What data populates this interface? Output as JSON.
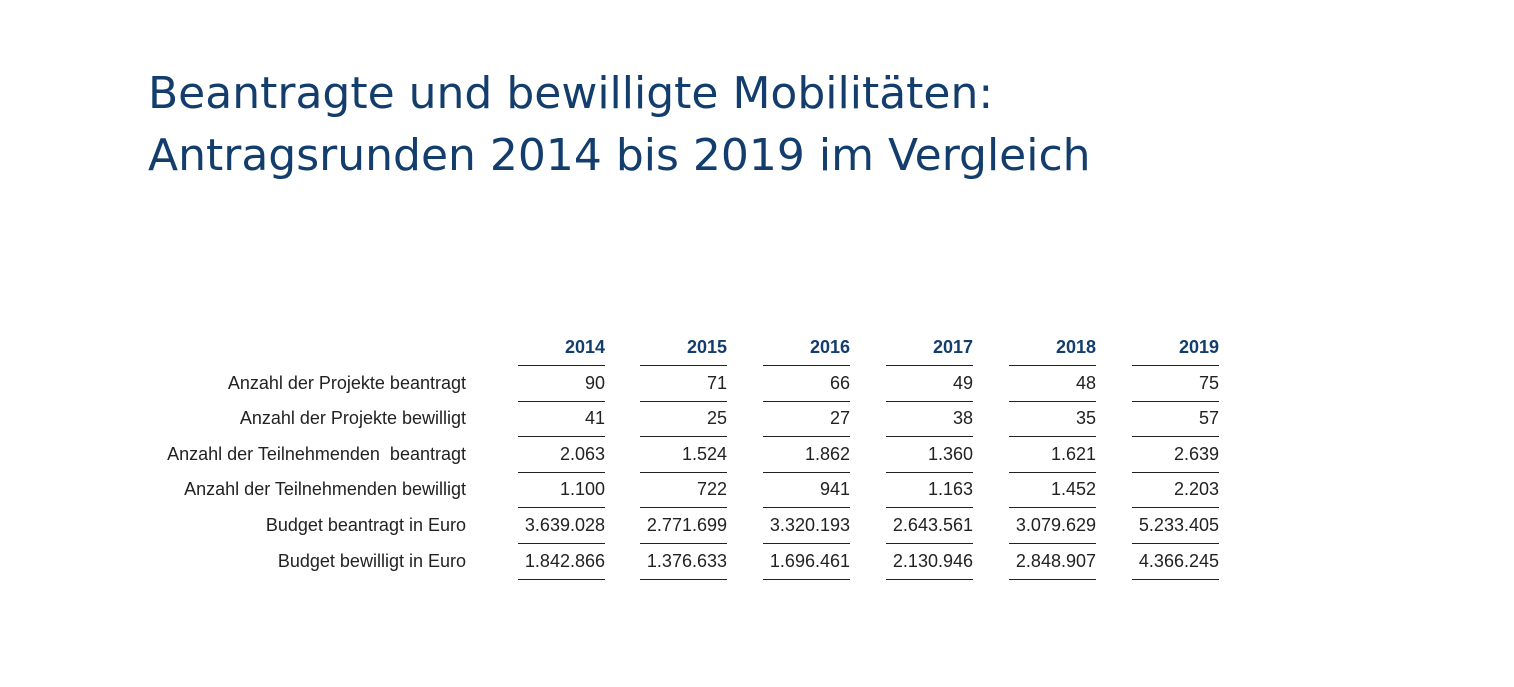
{
  "header": {
    "title": [
      "Beantragte und bewilligte Mobilitäten:",
      "Antragsrunden 2014 bis 2019 im Vergleich"
    ]
  },
  "table": {
    "columns": [
      "2014",
      "2015",
      "2016",
      "2017",
      "2018",
      "2019"
    ],
    "rows": [
      {
        "label": "Anzahl der Projekte beantragt",
        "cells": [
          "90",
          "71",
          "66",
          "49",
          "48",
          "75"
        ]
      },
      {
        "label": "Anzahl der Projekte bewilligt",
        "cells": [
          "41",
          "25",
          "27",
          "38",
          "35",
          "57"
        ]
      },
      {
        "label": "Anzahl der Teilnehmenden  beantragt",
        "cells": [
          "2.063",
          "1.524",
          "1.862",
          "1.360",
          "1.621",
          "2.639"
        ]
      },
      {
        "label": "Anzahl der Teilnehmenden bewilligt",
        "cells": [
          "1.100",
          "722",
          "941",
          "1.163",
          "1.452",
          "2.203"
        ]
      },
      {
        "label": "Budget beantragt in Euro",
        "cells": [
          "3.639.028",
          "2.771.699",
          "3.320.193",
          "2.643.561",
          "3.079.629",
          "5.233.405"
        ]
      },
      {
        "label": "Budget bewilligt in Euro",
        "cells": [
          "1.842.866",
          "1.376.633",
          "1.696.461",
          "2.130.946",
          "2.848.907",
          "4.366.245"
        ]
      }
    ]
  }
}
